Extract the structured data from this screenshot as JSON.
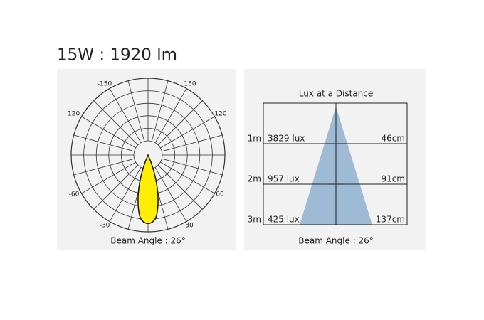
{
  "header": {
    "title": "15W : 1920 lm"
  },
  "polar": {
    "angle_labels": [
      "-150",
      "150",
      "-120",
      "120",
      "-60",
      "60",
      "-30",
      "30"
    ],
    "caption": "Beam Angle : 26°"
  },
  "lux": {
    "title": "Lux at a Distance",
    "rows": [
      {
        "distance": "1m",
        "lux": "3829 lux",
        "diameter": "46cm"
      },
      {
        "distance": "2m",
        "lux": "957 lux",
        "diameter": "91cm"
      },
      {
        "distance": "3m",
        "lux": "425 lux",
        "diameter": "137cm"
      }
    ],
    "caption": "Beam Angle : 26°"
  }
}
